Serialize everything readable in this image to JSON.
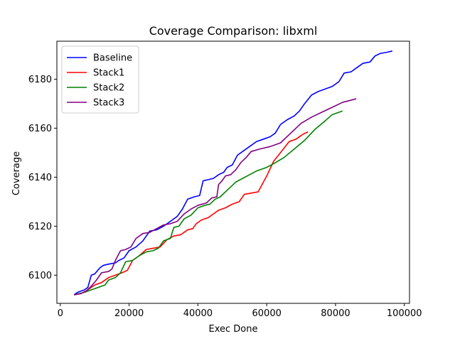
{
  "chart_data": {
    "type": "line",
    "title": "Coverage Comparison: libxml",
    "xlabel": "Exec Done",
    "ylabel": "Coverage",
    "xlim": [
      -1000,
      101500
    ],
    "ylim": [
      6088.5,
      6195.5
    ],
    "xticks": [
      0,
      20000,
      40000,
      60000,
      80000,
      100000
    ],
    "yticks": [
      6100,
      6120,
      6140,
      6160,
      6180
    ],
    "grid": false,
    "legend_position": "top-left",
    "series": [
      {
        "name": "Baseline",
        "color": "#0000ff",
        "points": [
          [
            4000,
            6092
          ],
          [
            5000,
            6093
          ],
          [
            7000,
            6094
          ],
          [
            8000,
            6095
          ],
          [
            9000,
            6100
          ],
          [
            10000,
            6100.5
          ],
          [
            11500,
            6103
          ],
          [
            12500,
            6104
          ],
          [
            14000,
            6104.5
          ],
          [
            16000,
            6105
          ],
          [
            17000,
            6106
          ],
          [
            18500,
            6107
          ],
          [
            20000,
            6110
          ],
          [
            22000,
            6111.5
          ],
          [
            24000,
            6114
          ],
          [
            26000,
            6118
          ],
          [
            28000,
            6118.5
          ],
          [
            30000,
            6120
          ],
          [
            32000,
            6122
          ],
          [
            34000,
            6124
          ],
          [
            35500,
            6127
          ],
          [
            37000,
            6131
          ],
          [
            39000,
            6132
          ],
          [
            40500,
            6132.5
          ],
          [
            41500,
            6138.5
          ],
          [
            43000,
            6139
          ],
          [
            44500,
            6139.5
          ],
          [
            46000,
            6141
          ],
          [
            47500,
            6142
          ],
          [
            48500,
            6144
          ],
          [
            50000,
            6145
          ],
          [
            51500,
            6149
          ],
          [
            53000,
            6150.5
          ],
          [
            55000,
            6152.5
          ],
          [
            57000,
            6154.5
          ],
          [
            59000,
            6155.5
          ],
          [
            61000,
            6156.5
          ],
          [
            62500,
            6158
          ],
          [
            64000,
            6161.5
          ],
          [
            66000,
            6163.5
          ],
          [
            68000,
            6165
          ],
          [
            69500,
            6167
          ],
          [
            71000,
            6170
          ],
          [
            73000,
            6173.5
          ],
          [
            75000,
            6175
          ],
          [
            77000,
            6176
          ],
          [
            79000,
            6177
          ],
          [
            81000,
            6179
          ],
          [
            82500,
            6182.5
          ],
          [
            84500,
            6183
          ],
          [
            86500,
            6185
          ],
          [
            88000,
            6186.5
          ],
          [
            90000,
            6187
          ],
          [
            91500,
            6189.5
          ],
          [
            93000,
            6190.5
          ],
          [
            95000,
            6191
          ],
          [
            96500,
            6191.5
          ]
        ]
      },
      {
        "name": "Stack1",
        "color": "#ff0000",
        "points": [
          [
            4000,
            6092
          ],
          [
            6000,
            6092.5
          ],
          [
            8000,
            6094
          ],
          [
            10000,
            6096
          ],
          [
            12000,
            6097
          ],
          [
            14000,
            6099
          ],
          [
            16000,
            6100
          ],
          [
            18000,
            6101
          ],
          [
            19500,
            6102
          ],
          [
            21000,
            6106
          ],
          [
            23000,
            6108
          ],
          [
            25000,
            6110.5
          ],
          [
            27000,
            6111
          ],
          [
            29000,
            6111.5
          ],
          [
            31000,
            6114.5
          ],
          [
            33000,
            6116
          ],
          [
            35000,
            6116.5
          ],
          [
            37000,
            6118.5
          ],
          [
            38500,
            6119
          ],
          [
            39500,
            6121
          ],
          [
            41000,
            6122.5
          ],
          [
            43000,
            6123.5
          ],
          [
            44500,
            6125
          ],
          [
            46000,
            6126.5
          ],
          [
            48000,
            6127.5
          ],
          [
            50000,
            6129
          ],
          [
            52000,
            6130
          ],
          [
            53500,
            6133
          ],
          [
            55500,
            6133.5
          ],
          [
            57500,
            6134
          ],
          [
            60000,
            6140.5
          ],
          [
            62000,
            6146.5
          ],
          [
            64000,
            6150
          ],
          [
            66500,
            6154.5
          ],
          [
            68500,
            6155.5
          ],
          [
            70500,
            6157.5
          ],
          [
            72000,
            6158.5
          ]
        ]
      },
      {
        "name": "Stack2",
        "color": "#008000",
        "points": [
          [
            4000,
            6092
          ],
          [
            7000,
            6093
          ],
          [
            9000,
            6094
          ],
          [
            11000,
            6095
          ],
          [
            13000,
            6096
          ],
          [
            14000,
            6098
          ],
          [
            16000,
            6099
          ],
          [
            17500,
            6101
          ],
          [
            19000,
            6105.5
          ],
          [
            21000,
            6106
          ],
          [
            23000,
            6108
          ],
          [
            25000,
            6109.5
          ],
          [
            27000,
            6110
          ],
          [
            28500,
            6111
          ],
          [
            30000,
            6114
          ],
          [
            32000,
            6115
          ],
          [
            33000,
            6119.5
          ],
          [
            34500,
            6120
          ],
          [
            36000,
            6123
          ],
          [
            38000,
            6124.5
          ],
          [
            40000,
            6127.5
          ],
          [
            42000,
            6128.5
          ],
          [
            43500,
            6129
          ],
          [
            45000,
            6131
          ],
          [
            46500,
            6132
          ],
          [
            48000,
            6134
          ],
          [
            49500,
            6136
          ],
          [
            51000,
            6138
          ],
          [
            53000,
            6139.5
          ],
          [
            55000,
            6141
          ],
          [
            57000,
            6142.5
          ],
          [
            60000,
            6144
          ],
          [
            62000,
            6145.5
          ],
          [
            65000,
            6148
          ],
          [
            68000,
            6151.5
          ],
          [
            71000,
            6155
          ],
          [
            74000,
            6159.5
          ],
          [
            77000,
            6163
          ],
          [
            79000,
            6165.5
          ],
          [
            82000,
            6167
          ]
        ]
      },
      {
        "name": "Stack3",
        "color": "#800080",
        "points": [
          [
            4000,
            6092
          ],
          [
            6000,
            6092.5
          ],
          [
            7500,
            6093.5
          ],
          [
            9000,
            6095.5
          ],
          [
            10500,
            6098
          ],
          [
            12000,
            6101
          ],
          [
            14000,
            6101.5
          ],
          [
            15000,
            6102.5
          ],
          [
            16000,
            6106
          ],
          [
            17500,
            6110
          ],
          [
            19000,
            6110.5
          ],
          [
            20500,
            6111.5
          ],
          [
            22000,
            6115
          ],
          [
            24000,
            6117
          ],
          [
            26000,
            6117.5
          ],
          [
            28000,
            6119
          ],
          [
            30000,
            6120.5
          ],
          [
            32000,
            6121
          ],
          [
            34000,
            6122
          ],
          [
            36000,
            6125
          ],
          [
            38000,
            6127
          ],
          [
            40000,
            6128.5
          ],
          [
            42500,
            6129.5
          ],
          [
            44000,
            6131.5
          ],
          [
            45500,
            6132
          ],
          [
            46000,
            6137
          ],
          [
            47000,
            6138.5
          ],
          [
            48000,
            6140.5
          ],
          [
            49500,
            6141
          ],
          [
            51000,
            6143
          ],
          [
            52500,
            6146
          ],
          [
            54000,
            6148
          ],
          [
            55500,
            6150.5
          ],
          [
            58000,
            6151.5
          ],
          [
            61000,
            6152.5
          ],
          [
            64000,
            6154
          ],
          [
            67000,
            6158
          ],
          [
            70000,
            6162
          ],
          [
            73000,
            6164.5
          ],
          [
            76000,
            6166.5
          ],
          [
            79000,
            6168.5
          ],
          [
            82000,
            6170.5
          ],
          [
            86000,
            6172
          ]
        ]
      }
    ]
  }
}
